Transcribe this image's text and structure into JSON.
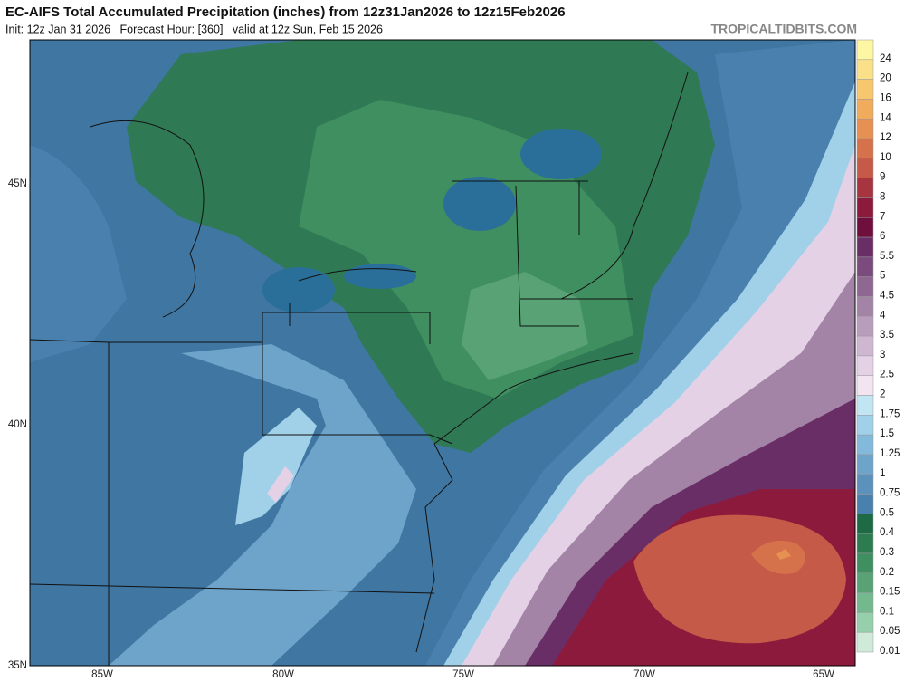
{
  "header": {
    "title": "EC-AIFS Total Accumulated Precipitation (inches) from 12z31Jan2026 to 12z15Feb2026",
    "subtitle": "Init: 12z Jan 31 2026   Forecast Hour: [360]   valid at 12z Sun, Feb 15 2026",
    "credit": "TROPICALTIDBITS.COM"
  },
  "map": {
    "lat_labels": [
      "45N",
      "40N",
      "35N"
    ],
    "lon_labels": [
      "85W",
      "80W",
      "75W",
      "70W",
      "65W"
    ]
  },
  "colorbar": {
    "levels": [
      24,
      20,
      16,
      14,
      12,
      10,
      9,
      8,
      7,
      6,
      5.5,
      5,
      4.5,
      4,
      3.5,
      3,
      2.5,
      2,
      1.75,
      1.5,
      1.25,
      1,
      0.75,
      0.5,
      0.4,
      0.3,
      0.2,
      0.15,
      0.1,
      0.05,
      0.01
    ],
    "colors": [
      "#fdf6a3",
      "#fbe08a",
      "#f7c76e",
      "#f0ac5c",
      "#e69052",
      "#d6724b",
      "#c45a47",
      "#a63540",
      "#8c1a3c",
      "#6e0f3e",
      "#6a2e67",
      "#7b4b7d",
      "#8e6792",
      "#a384a6",
      "#b99dbc",
      "#cfb7d2",
      "#e4d1e6",
      "#f2e5f1",
      "#c2e5f4",
      "#a0d1e9",
      "#83b9da",
      "#6ea4c9",
      "#5c91bb",
      "#4a80ad",
      "#1d6a45",
      "#2d7c50",
      "#3f8f60",
      "#58a276",
      "#74b88e",
      "#96cfab",
      "#cfead9"
    ]
  }
}
